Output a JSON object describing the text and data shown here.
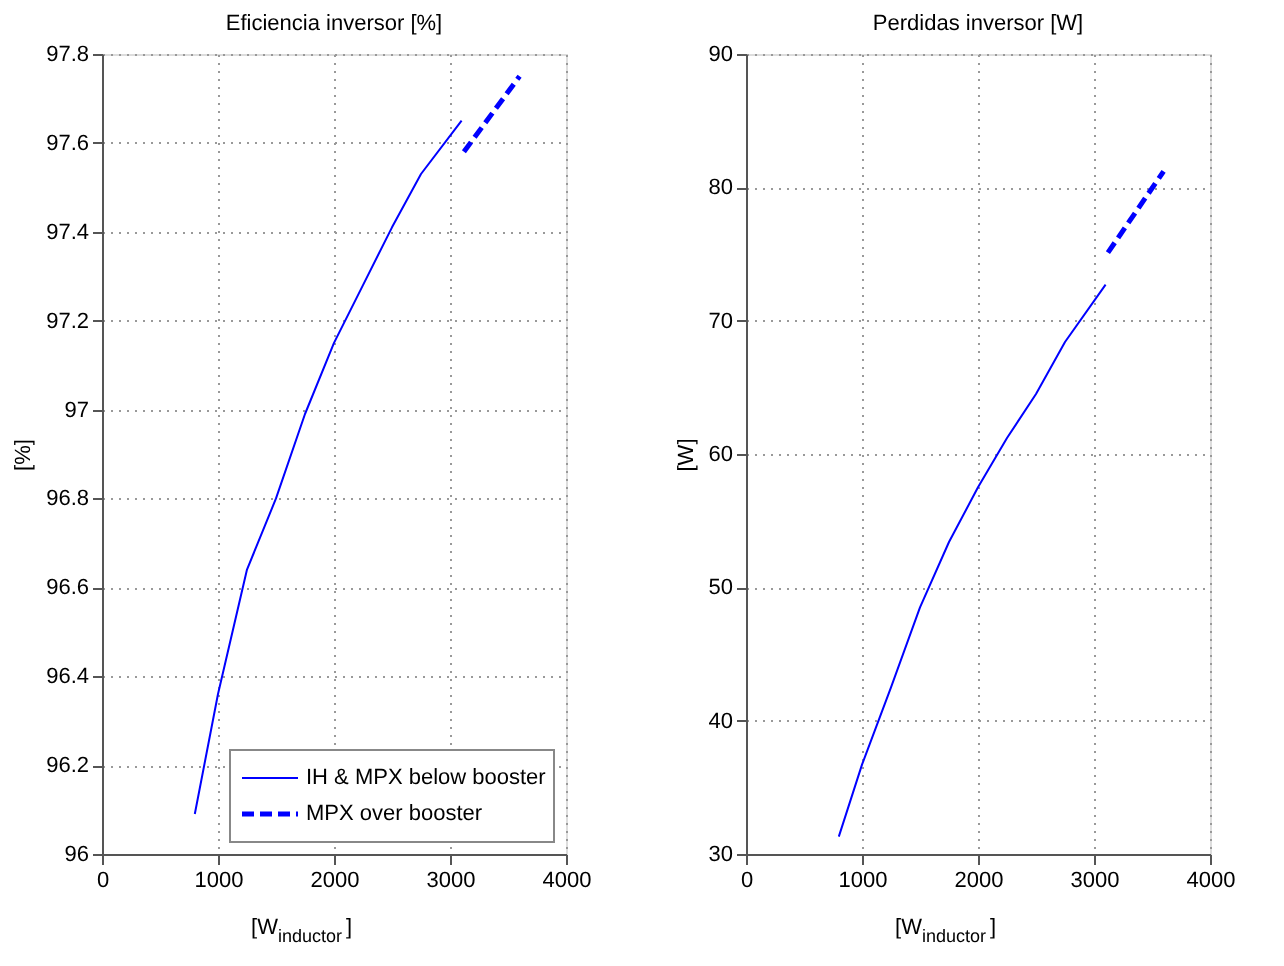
{
  "chart_data": [
    {
      "type": "line",
      "title": "Eficiencia inversor [%]",
      "xlabel": "[W$_{inductor}$]",
      "ylabel": "[%]",
      "xlim": [
        0,
        4000
      ],
      "xticks": [
        0,
        1000,
        2000,
        3000,
        4000
      ],
      "ylim": [
        96,
        97.8
      ],
      "yticks": [
        96,
        96.2,
        96.4,
        96.6,
        96.8,
        97,
        97.2,
        97.4,
        97.6,
        97.8
      ],
      "grid": true,
      "legend": "bottom right",
      "series": [
        {
          "name": "IH & MPX below booster",
          "color": "#0000ff",
          "line_style": "solid",
          "x": [
            800,
            1000,
            1250,
            1500,
            1750,
            2000,
            2250,
            2500,
            2750,
            3100
          ],
          "values": [
            96.09,
            96.36,
            96.64,
            96.8,
            96.99,
            97.15,
            97.28,
            97.41,
            97.53,
            97.65
          ]
        },
        {
          "name": "MPX over booster",
          "color": "#0000ff",
          "line_style": "dashed",
          "x": [
            3120,
            3600
          ],
          "values": [
            97.58,
            97.75
          ]
        }
      ]
    },
    {
      "type": "line",
      "title": "Perdidas inversor [W]",
      "xlabel": "[W$_{inductor}$]",
      "ylabel": "[W]",
      "xlim": [
        0,
        4000
      ],
      "xticks": [
        0,
        1000,
        2000,
        3000,
        4000
      ],
      "ylim": [
        30,
        90
      ],
      "yticks": [
        30,
        40,
        50,
        60,
        70,
        80,
        90
      ],
      "grid": true,
      "series": [
        {
          "color": "#0000ff",
          "line_style": "solid",
          "x": [
            800,
            1000,
            1250,
            1500,
            1750,
            2000,
            2250,
            2500,
            2750,
            3100
          ],
          "values": [
            31.3,
            36.7,
            42.5,
            48.5,
            53.4,
            57.5,
            61.2,
            64.5,
            68.4,
            72.7
          ]
        },
        {
          "color": "#0000ff",
          "line_style": "dashed",
          "x": [
            3120,
            3600
          ],
          "values": [
            75.1,
            81.2
          ]
        }
      ]
    }
  ]
}
